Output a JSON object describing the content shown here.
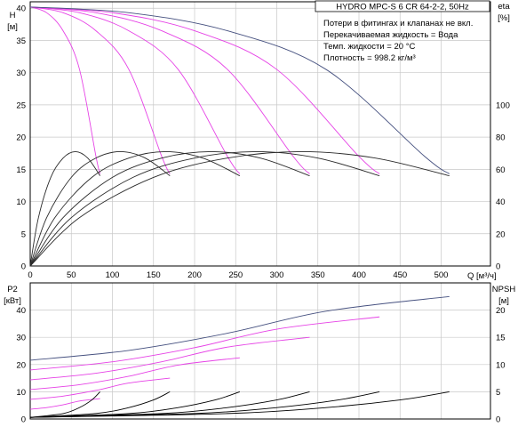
{
  "info": {
    "title": "HYDRO MPC-S 6 CR 64-2-2, 50Hz",
    "lines": [
      "Потери в фитингах и клапанах не вкл.",
      "Перекачиваемая жидкость = Вода",
      "Темп. жидкости = 20 °C",
      "Плотность = 998.2 кг/м³"
    ]
  },
  "colors": {
    "magenta": "#e642e6",
    "blue": "#45507f",
    "dark": "#2a2a2a",
    "black": "#000000",
    "grid": "#c8c8c8"
  },
  "chart_data": [
    {
      "type": "line",
      "panel": "head-efficiency",
      "xlabel": "Q [м³/ч]",
      "ylabel_left": [
        "H",
        "[м]"
      ],
      "ylabel_right": [
        "eta",
        "[%]"
      ],
      "xlim": [
        0,
        560
      ],
      "ylim": [
        0,
        41
      ],
      "ylim_right": [
        0,
        164
      ],
      "xticks": [
        0,
        50,
        100,
        150,
        200,
        250,
        300,
        350,
        400,
        450,
        500
      ],
      "yticks": [
        0,
        5,
        10,
        15,
        20,
        25,
        30,
        35,
        40
      ],
      "yticks_right": [
        0,
        20,
        40,
        60,
        80,
        100
      ],
      "grid": true,
      "series": [
        {
          "role": "head",
          "pumps": 1,
          "color": "magenta",
          "x": [
            0,
            20,
            40,
            60,
            80,
            85
          ],
          "y": [
            40.2,
            39.3,
            36.5,
            30.5,
            17.0,
            14.3
          ]
        },
        {
          "role": "head",
          "pumps": 2,
          "color": "magenta",
          "x": [
            0,
            40,
            80,
            120,
            160,
            170
          ],
          "y": [
            40.2,
            39.3,
            36.5,
            30.5,
            17.0,
            14.3
          ]
        },
        {
          "role": "head",
          "pumps": 3,
          "color": "magenta",
          "x": [
            0,
            60,
            120,
            180,
            240,
            255
          ],
          "y": [
            40.2,
            39.3,
            36.5,
            30.5,
            17.0,
            14.3
          ]
        },
        {
          "role": "head",
          "pumps": 4,
          "color": "magenta",
          "x": [
            0,
            80,
            160,
            240,
            320,
            340
          ],
          "y": [
            40.2,
            39.3,
            36.5,
            30.5,
            17.0,
            14.3
          ]
        },
        {
          "role": "head",
          "pumps": 5,
          "color": "magenta",
          "x": [
            0,
            100,
            200,
            300,
            400,
            425
          ],
          "y": [
            40.2,
            39.3,
            36.5,
            30.5,
            17.0,
            14.3
          ]
        },
        {
          "role": "head",
          "pumps": 6,
          "color": "blue",
          "x": [
            0,
            120,
            240,
            360,
            480,
            510
          ],
          "y": [
            40.2,
            39.3,
            36.5,
            30.5,
            17.0,
            14.3
          ]
        },
        {
          "role": "efficiency",
          "pumps": 1,
          "color": "dark",
          "x": [
            0,
            10,
            25,
            40,
            55,
            70,
            85
          ],
          "y": [
            0,
            30,
            55,
            67,
            71,
            67,
            56
          ]
        },
        {
          "role": "efficiency",
          "pumps": 2,
          "color": "dark",
          "x": [
            0,
            20,
            50,
            80,
            110,
            140,
            170
          ],
          "y": [
            0,
            30,
            55,
            67,
            71,
            67,
            56
          ]
        },
        {
          "role": "efficiency",
          "pumps": 3,
          "color": "dark",
          "x": [
            0,
            30,
            75,
            120,
            165,
            210,
            255
          ],
          "y": [
            0,
            30,
            55,
            67,
            71,
            67,
            56
          ]
        },
        {
          "role": "efficiency",
          "pumps": 4,
          "color": "dark",
          "x": [
            0,
            40,
            100,
            160,
            220,
            280,
            340
          ],
          "y": [
            0,
            30,
            55,
            67,
            71,
            67,
            56
          ]
        },
        {
          "role": "efficiency",
          "pumps": 5,
          "color": "dark",
          "x": [
            0,
            50,
            125,
            200,
            275,
            350,
            425
          ],
          "y": [
            0,
            30,
            55,
            67,
            71,
            67,
            56
          ]
        },
        {
          "role": "efficiency",
          "pumps": 6,
          "color": "dark",
          "x": [
            0,
            60,
            150,
            240,
            330,
            420,
            510
          ],
          "y": [
            0,
            30,
            55,
            67,
            71,
            67,
            56
          ]
        }
      ]
    },
    {
      "type": "line",
      "panel": "power-npsh",
      "xlabel": "",
      "ylabel_left": [
        "P2",
        "[кВт]"
      ],
      "ylabel_right": [
        "NPSH",
        "[м]"
      ],
      "xlim": [
        0,
        560
      ],
      "ylim": [
        0,
        50
      ],
      "ylim_right": [
        0,
        25
      ],
      "yticks": [
        0,
        10,
        20,
        30,
        40
      ],
      "yticks_right": [
        0,
        5,
        10,
        15,
        20
      ],
      "grid": true,
      "series": [
        {
          "role": "power",
          "pumps": 1,
          "color": "magenta",
          "x": [
            0,
            20,
            40,
            60,
            85
          ],
          "y": [
            3.6,
            4.2,
            5.2,
            6.6,
            7.5
          ]
        },
        {
          "role": "power",
          "pumps": 2,
          "color": "magenta",
          "x": [
            0,
            40,
            80,
            120,
            170
          ],
          "y": [
            7.2,
            8.4,
            10.5,
            13.2,
            15.0
          ]
        },
        {
          "role": "power",
          "pumps": 3,
          "color": "magenta",
          "x": [
            0,
            60,
            120,
            180,
            255
          ],
          "y": [
            10.8,
            12.6,
            15.7,
            19.8,
            22.5
          ]
        },
        {
          "role": "power",
          "pumps": 4,
          "color": "magenta",
          "x": [
            0,
            80,
            160,
            240,
            340
          ],
          "y": [
            14.4,
            16.8,
            21.0,
            26.4,
            30.0
          ]
        },
        {
          "role": "power",
          "pumps": 5,
          "color": "magenta",
          "x": [
            0,
            100,
            200,
            300,
            425
          ],
          "y": [
            18.0,
            21.0,
            26.2,
            33.0,
            37.5
          ]
        },
        {
          "role": "power",
          "pumps": 6,
          "color": "blue",
          "x": [
            0,
            120,
            240,
            360,
            510
          ],
          "y": [
            21.6,
            25.2,
            31.5,
            39.6,
            45.0
          ]
        },
        {
          "role": "npsh",
          "pumps": 1,
          "color": "black",
          "x": [
            0,
            40,
            60,
            75,
            85
          ],
          "y": [
            0.3,
            1.0,
            2.1,
            3.5,
            5.0
          ]
        },
        {
          "role": "npsh",
          "pumps": 2,
          "color": "black",
          "x": [
            0,
            80,
            120,
            150,
            170
          ],
          "y": [
            0.3,
            1.0,
            2.1,
            3.5,
            5.0
          ]
        },
        {
          "role": "npsh",
          "pumps": 3,
          "color": "black",
          "x": [
            0,
            120,
            180,
            225,
            255
          ],
          "y": [
            0.3,
            1.0,
            2.1,
            3.5,
            5.0
          ]
        },
        {
          "role": "npsh",
          "pumps": 4,
          "color": "black",
          "x": [
            0,
            160,
            240,
            300,
            340
          ],
          "y": [
            0.3,
            1.0,
            2.1,
            3.5,
            5.0
          ]
        },
        {
          "role": "npsh",
          "pumps": 5,
          "color": "black",
          "x": [
            0,
            200,
            300,
            375,
            425
          ],
          "y": [
            0.3,
            1.0,
            2.1,
            3.5,
            5.0
          ]
        },
        {
          "role": "npsh",
          "pumps": 6,
          "color": "black",
          "x": [
            0,
            240,
            360,
            450,
            510
          ],
          "y": [
            0.3,
            1.0,
            2.1,
            3.5,
            5.0
          ]
        }
      ]
    }
  ]
}
